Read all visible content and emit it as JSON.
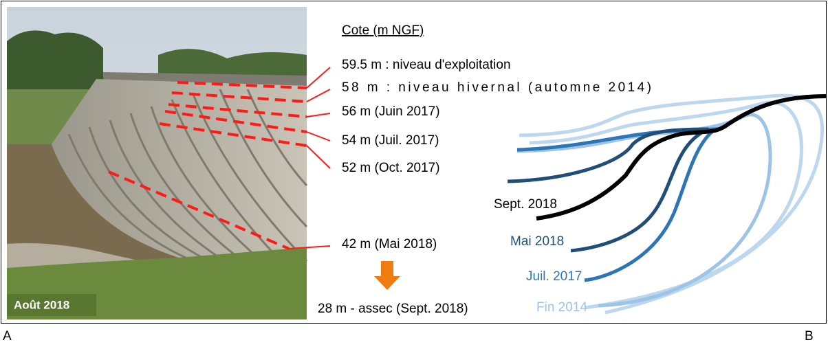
{
  "photo": {
    "caption": "Août 2018"
  },
  "legend": {
    "title": "Cote (m NGF)",
    "levels": [
      "59.5 m : niveau d'exploitation",
      "58 m : niveau hivernal (automne 2014)",
      "56 m (Juin 2017)",
      "54 m (Juil. 2017)",
      "52 m (Oct. 2017)",
      "42 m (Mai 2018)"
    ],
    "dry": "28 m - assec (Sept. 2018)"
  },
  "profiles": [
    "Sept. 2018",
    "Mai 2018",
    "Juil. 2017",
    "Fin 2014"
  ],
  "panels": [
    "A",
    "B"
  ]
}
